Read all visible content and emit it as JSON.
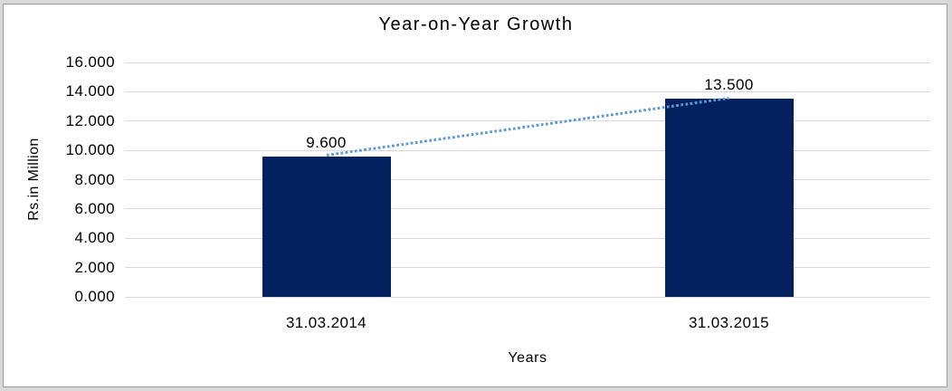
{
  "chart_data": {
    "type": "bar",
    "title": "Year-on-Year Growth",
    "xlabel": "Years",
    "ylabel": "Rs.in Million",
    "categories": [
      "31.03.2014",
      "31.03.2015"
    ],
    "values": [
      9.6,
      13.5
    ],
    "value_labels": [
      "9.600",
      "13.500"
    ],
    "y_ticks": [
      {
        "value": 16,
        "label": "16.000"
      },
      {
        "value": 14,
        "label": "14.000"
      },
      {
        "value": 12,
        "label": "12.000"
      },
      {
        "value": 10,
        "label": "10.000"
      },
      {
        "value": 8,
        "label": "8.000"
      },
      {
        "value": 6,
        "label": "6.000"
      },
      {
        "value": 4,
        "label": "4.000"
      },
      {
        "value": 2,
        "label": "2.000"
      },
      {
        "value": 0,
        "label": "0.000"
      }
    ],
    "ylim": [
      0,
      16
    ],
    "grid": true,
    "legend": false,
    "trendline": {
      "style": "dotted",
      "from_value": 9.6,
      "to_value": 13.5
    },
    "colors": {
      "bar": "#03215f",
      "trendline": "#5b9bd5",
      "gridline": "#d9d9d9",
      "text": "#000000",
      "surface_bg": "#ffffff",
      "outer_bg": "#d9d9d9",
      "frame_border": "#9b9b9b"
    }
  }
}
